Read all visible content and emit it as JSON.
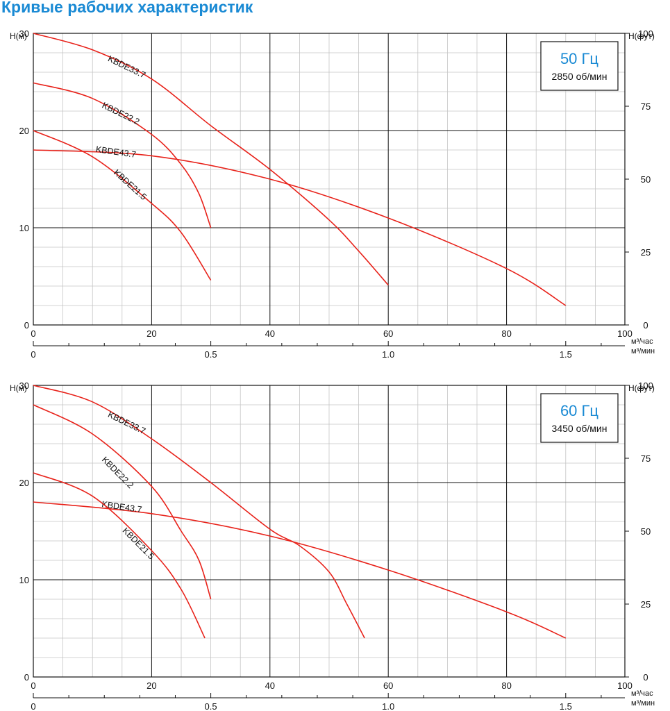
{
  "page": {
    "title": "Кривые рабочих характеристик"
  },
  "chart_data": [
    {
      "type": "line",
      "freq_label": "50 Гц",
      "rpm_label": "2850 об/мин",
      "ylabel": "Н(м)",
      "y2label": "Н(фут)",
      "xlabel": "м³/час",
      "x2label": "м³/мин",
      "xlim": [
        0,
        100
      ],
      "ylim": [
        0,
        30
      ],
      "y2lim": [
        0,
        100
      ],
      "x_ticks": [
        0,
        20,
        40,
        60,
        80,
        100
      ],
      "x_tick_labels": [
        "0",
        "20",
        "40",
        "60",
        "80",
        "100"
      ],
      "y_ticks": [
        0,
        10,
        20,
        30
      ],
      "y_tick_labels": [
        "0",
        "10",
        "20",
        "30"
      ],
      "y2_ticks": [
        0,
        25,
        50,
        75,
        100
      ],
      "y2_tick_labels": [
        "0",
        "25",
        "50",
        "75",
        "100"
      ],
      "x2_ticks": [
        0,
        0.5,
        1.0,
        1.5
      ],
      "x2_tick_labels": [
        "0",
        "0.5",
        "1.0",
        "1.5"
      ],
      "grid": true,
      "series": [
        {
          "name": "KBDE33.7",
          "label_at": [
            12.5,
            27.2
          ],
          "label_angle": 26,
          "points": [
            [
              0,
              30
            ],
            [
              10,
              28.3
            ],
            [
              20,
              25.3
            ],
            [
              30,
              20.5
            ],
            [
              40,
              16
            ],
            [
              50,
              10.8
            ],
            [
              55,
              7.6
            ],
            [
              60,
              4.1
            ]
          ]
        },
        {
          "name": "KBDE22.2",
          "label_at": [
            11.5,
            22.4
          ],
          "label_angle": 26,
          "points": [
            [
              0,
              24.9
            ],
            [
              10,
              23.3
            ],
            [
              20,
              19.6
            ],
            [
              25,
              16.5
            ],
            [
              28,
              13.5
            ],
            [
              30,
              10
            ]
          ]
        },
        {
          "name": "KBDE43.7",
          "label_at": [
            10.5,
            17.8
          ],
          "label_angle": 8,
          "points": [
            [
              0,
              18
            ],
            [
              20,
              17.4
            ],
            [
              40,
              15
            ],
            [
              60,
              11
            ],
            [
              80,
              5.8
            ],
            [
              90,
              2
            ]
          ]
        },
        {
          "name": "KBDE21.5",
          "label_at": [
            13.5,
            15.6
          ],
          "label_angle": 42,
          "points": [
            [
              0,
              20
            ],
            [
              10,
              17.3
            ],
            [
              20,
              12.5
            ],
            [
              25,
              9.5
            ],
            [
              30,
              4.6
            ]
          ]
        }
      ]
    },
    {
      "type": "line",
      "freq_label": "60 Гц",
      "rpm_label": "3450 об/мин",
      "ylabel": "Н(м)",
      "y2label": "Н(фут)",
      "xlabel": "м³/час",
      "x2label": "м³/мин",
      "xlim": [
        0,
        100
      ],
      "ylim": [
        0,
        30
      ],
      "y2lim": [
        0,
        100
      ],
      "x_ticks": [
        0,
        20,
        40,
        60,
        80,
        100
      ],
      "x_tick_labels": [
        "0",
        "20",
        "40",
        "60",
        "80",
        "100"
      ],
      "y_ticks": [
        0,
        10,
        20,
        30
      ],
      "y_tick_labels": [
        "0",
        "10",
        "20",
        "30"
      ],
      "y2_ticks": [
        0,
        25,
        50,
        75,
        100
      ],
      "y2_tick_labels": [
        "0",
        "25",
        "50",
        "75",
        "100"
      ],
      "x2_ticks": [
        0,
        0.5,
        1.0,
        1.5
      ],
      "x2_tick_labels": [
        "0",
        "0.5",
        "1.0",
        "1.5"
      ],
      "grid": true,
      "series": [
        {
          "name": "KBDE33.7",
          "label_at": [
            12.5,
            26.8
          ],
          "label_angle": 26,
          "points": [
            [
              0,
              30
            ],
            [
              10,
              28.3
            ],
            [
              20,
              24.5
            ],
            [
              30,
              20
            ],
            [
              40,
              15.2
            ],
            [
              45,
              13.5
            ],
            [
              50,
              10.8
            ],
            [
              53,
              7.5
            ],
            [
              56,
              4
            ]
          ]
        },
        {
          "name": "KBDE22.2",
          "label_at": [
            11.5,
            22.3
          ],
          "label_angle": 45,
          "points": [
            [
              0,
              28
            ],
            [
              10,
              25
            ],
            [
              20,
              19.6
            ],
            [
              25,
              15
            ],
            [
              28,
              12
            ],
            [
              30,
              8
            ]
          ]
        },
        {
          "name": "KBDE43.7",
          "label_at": [
            11.5,
            17.5
          ],
          "label_angle": 8,
          "points": [
            [
              0,
              18
            ],
            [
              20,
              16.8
            ],
            [
              40,
              14.5
            ],
            [
              60,
              11
            ],
            [
              80,
              6.7
            ],
            [
              90,
              4
            ]
          ]
        },
        {
          "name": "KBDE21.5",
          "label_at": [
            15,
            15
          ],
          "label_angle": 45,
          "points": [
            [
              0,
              21
            ],
            [
              10,
              18.6
            ],
            [
              20,
              13
            ],
            [
              25,
              9
            ],
            [
              29,
              4
            ]
          ]
        }
      ]
    }
  ]
}
